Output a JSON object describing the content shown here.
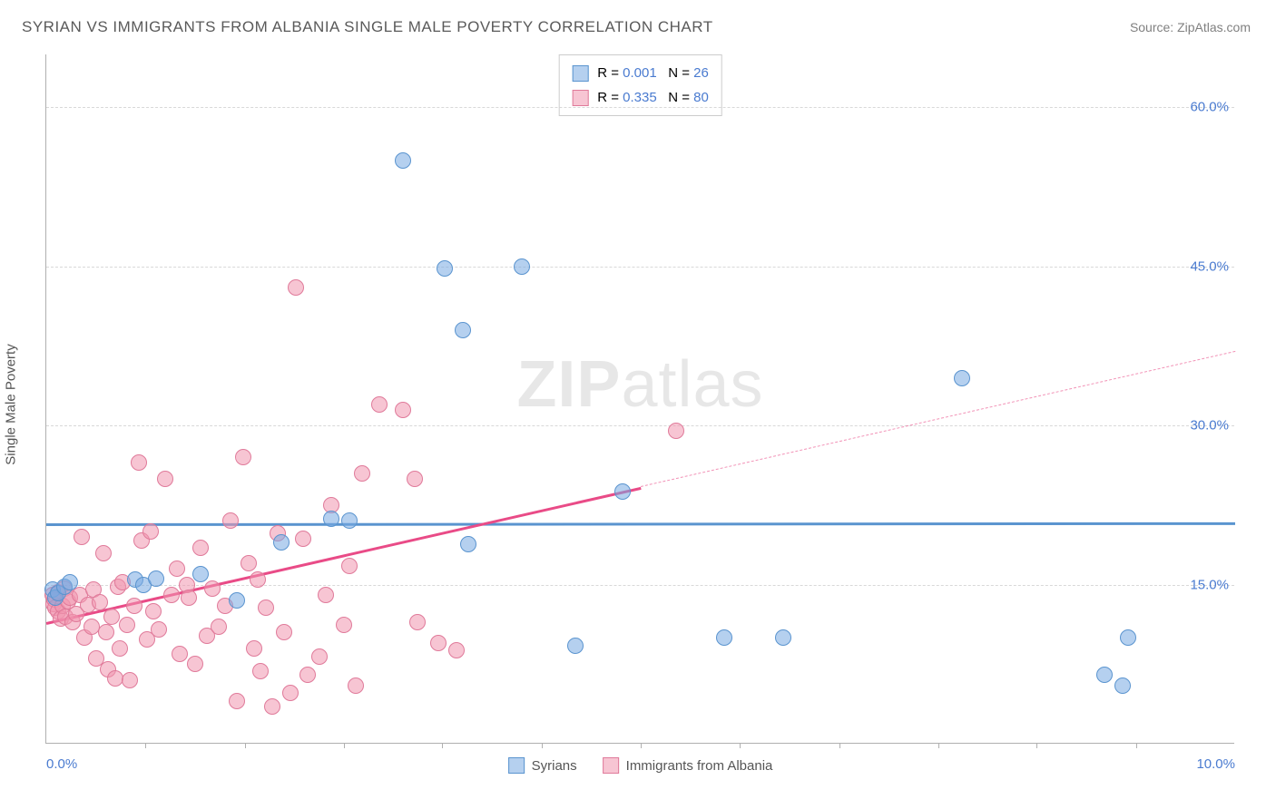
{
  "title": "SYRIAN VS IMMIGRANTS FROM ALBANIA SINGLE MALE POVERTY CORRELATION CHART",
  "source": "Source: ZipAtlas.com",
  "watermark": {
    "zip": "ZIP",
    "atlas": "atlas"
  },
  "chart": {
    "type": "scatter",
    "xlim": [
      0,
      10
    ],
    "ylim": [
      0,
      65
    ],
    "x_start_label": "0.0%",
    "x_end_label": "10.0%",
    "x_minor_ticks": [
      0.83,
      1.67,
      2.5,
      3.33,
      4.17,
      5.0,
      5.83,
      6.67,
      7.5,
      8.33,
      9.17
    ],
    "ytick_values": [
      15,
      30,
      45,
      60
    ],
    "ytick_labels": [
      "15.0%",
      "30.0%",
      "45.0%",
      "60.0%"
    ],
    "ylabel": "Single Male Poverty",
    "grid_color": "#d8d8d8",
    "background_color": "#ffffff",
    "axis_label_color": "#4a7bd0",
    "series": {
      "syrians": {
        "label": "Syrians",
        "marker_fill": "rgba(120,170,225,0.55)",
        "marker_stroke": "#5a94cf",
        "line_color": "#5a94cf",
        "line_width": 2.5,
        "R": "0.001",
        "N": "26",
        "regression": {
          "slope": 0.01,
          "intercept": 20.8
        },
        "points": [
          [
            0.05,
            14.5
          ],
          [
            0.08,
            13.8
          ],
          [
            0.1,
            14.2
          ],
          [
            0.15,
            14.8
          ],
          [
            0.2,
            15.2
          ],
          [
            0.75,
            15.5
          ],
          [
            0.82,
            15.0
          ],
          [
            0.92,
            15.6
          ],
          [
            1.6,
            13.5
          ],
          [
            1.3,
            16.0
          ],
          [
            1.98,
            19.0
          ],
          [
            2.4,
            21.2
          ],
          [
            2.55,
            21.0
          ],
          [
            3.0,
            55.0
          ],
          [
            3.35,
            44.8
          ],
          [
            3.5,
            39.0
          ],
          [
            3.55,
            18.8
          ],
          [
            4.0,
            45.0
          ],
          [
            4.45,
            9.2
          ],
          [
            4.85,
            23.8
          ],
          [
            5.7,
            10.0
          ],
          [
            6.2,
            10.0
          ],
          [
            7.7,
            34.5
          ],
          [
            8.9,
            6.5
          ],
          [
            9.05,
            5.5
          ],
          [
            9.1,
            10.0
          ]
        ]
      },
      "albania": {
        "label": "Immigrants from Albania",
        "marker_fill": "rgba(240,150,175,0.55)",
        "marker_stroke": "#e07a9a",
        "line_color": "#e94b87",
        "line_width": 2.5,
        "R": "0.335",
        "N": "80",
        "regression": {
          "slope": 2.55,
          "intercept": 11.5
        },
        "points": [
          [
            0.05,
            14.0
          ],
          [
            0.06,
            13.2
          ],
          [
            0.07,
            13.6
          ],
          [
            0.08,
            12.8
          ],
          [
            0.1,
            14.3
          ],
          [
            0.1,
            12.5
          ],
          [
            0.12,
            11.8
          ],
          [
            0.14,
            13.0
          ],
          [
            0.15,
            14.6
          ],
          [
            0.16,
            12.0
          ],
          [
            0.18,
            13.4
          ],
          [
            0.2,
            13.8
          ],
          [
            0.22,
            11.5
          ],
          [
            0.25,
            12.2
          ],
          [
            0.28,
            14.0
          ],
          [
            0.3,
            19.5
          ],
          [
            0.32,
            10.0
          ],
          [
            0.35,
            13.1
          ],
          [
            0.38,
            11.0
          ],
          [
            0.4,
            14.5
          ],
          [
            0.42,
            8.0
          ],
          [
            0.45,
            13.3
          ],
          [
            0.48,
            18.0
          ],
          [
            0.5,
            10.5
          ],
          [
            0.52,
            7.0
          ],
          [
            0.55,
            12.0
          ],
          [
            0.58,
            6.2
          ],
          [
            0.6,
            14.8
          ],
          [
            0.62,
            9.0
          ],
          [
            0.64,
            15.2
          ],
          [
            0.68,
            11.2
          ],
          [
            0.7,
            6.0
          ],
          [
            0.74,
            13.0
          ],
          [
            0.78,
            26.5
          ],
          [
            0.8,
            19.2
          ],
          [
            0.85,
            9.8
          ],
          [
            0.88,
            20.0
          ],
          [
            0.9,
            12.5
          ],
          [
            0.95,
            10.8
          ],
          [
            1.0,
            25.0
          ],
          [
            1.05,
            14.0
          ],
          [
            1.1,
            16.5
          ],
          [
            1.12,
            8.5
          ],
          [
            1.18,
            15.0
          ],
          [
            1.2,
            13.8
          ],
          [
            1.25,
            7.5
          ],
          [
            1.3,
            18.5
          ],
          [
            1.35,
            10.2
          ],
          [
            1.4,
            14.6
          ],
          [
            1.45,
            11.0
          ],
          [
            1.5,
            13.0
          ],
          [
            1.55,
            21.0
          ],
          [
            1.6,
            4.0
          ],
          [
            1.66,
            27.0
          ],
          [
            1.7,
            17.0
          ],
          [
            1.75,
            9.0
          ],
          [
            1.78,
            15.5
          ],
          [
            1.8,
            6.8
          ],
          [
            1.85,
            12.8
          ],
          [
            1.9,
            3.5
          ],
          [
            1.95,
            19.8
          ],
          [
            2.0,
            10.5
          ],
          [
            2.05,
            4.8
          ],
          [
            2.1,
            43.0
          ],
          [
            2.16,
            19.3
          ],
          [
            2.2,
            6.5
          ],
          [
            2.3,
            8.2
          ],
          [
            2.35,
            14.0
          ],
          [
            2.4,
            22.5
          ],
          [
            2.5,
            11.2
          ],
          [
            2.55,
            16.8
          ],
          [
            2.6,
            5.5
          ],
          [
            2.66,
            25.5
          ],
          [
            2.8,
            32.0
          ],
          [
            3.0,
            31.5
          ],
          [
            3.1,
            25.0
          ],
          [
            3.12,
            11.5
          ],
          [
            3.3,
            9.5
          ],
          [
            3.45,
            8.8
          ],
          [
            5.3,
            29.5
          ]
        ]
      }
    },
    "legend_labels": {
      "R": "R = ",
      "N": "N = "
    }
  }
}
